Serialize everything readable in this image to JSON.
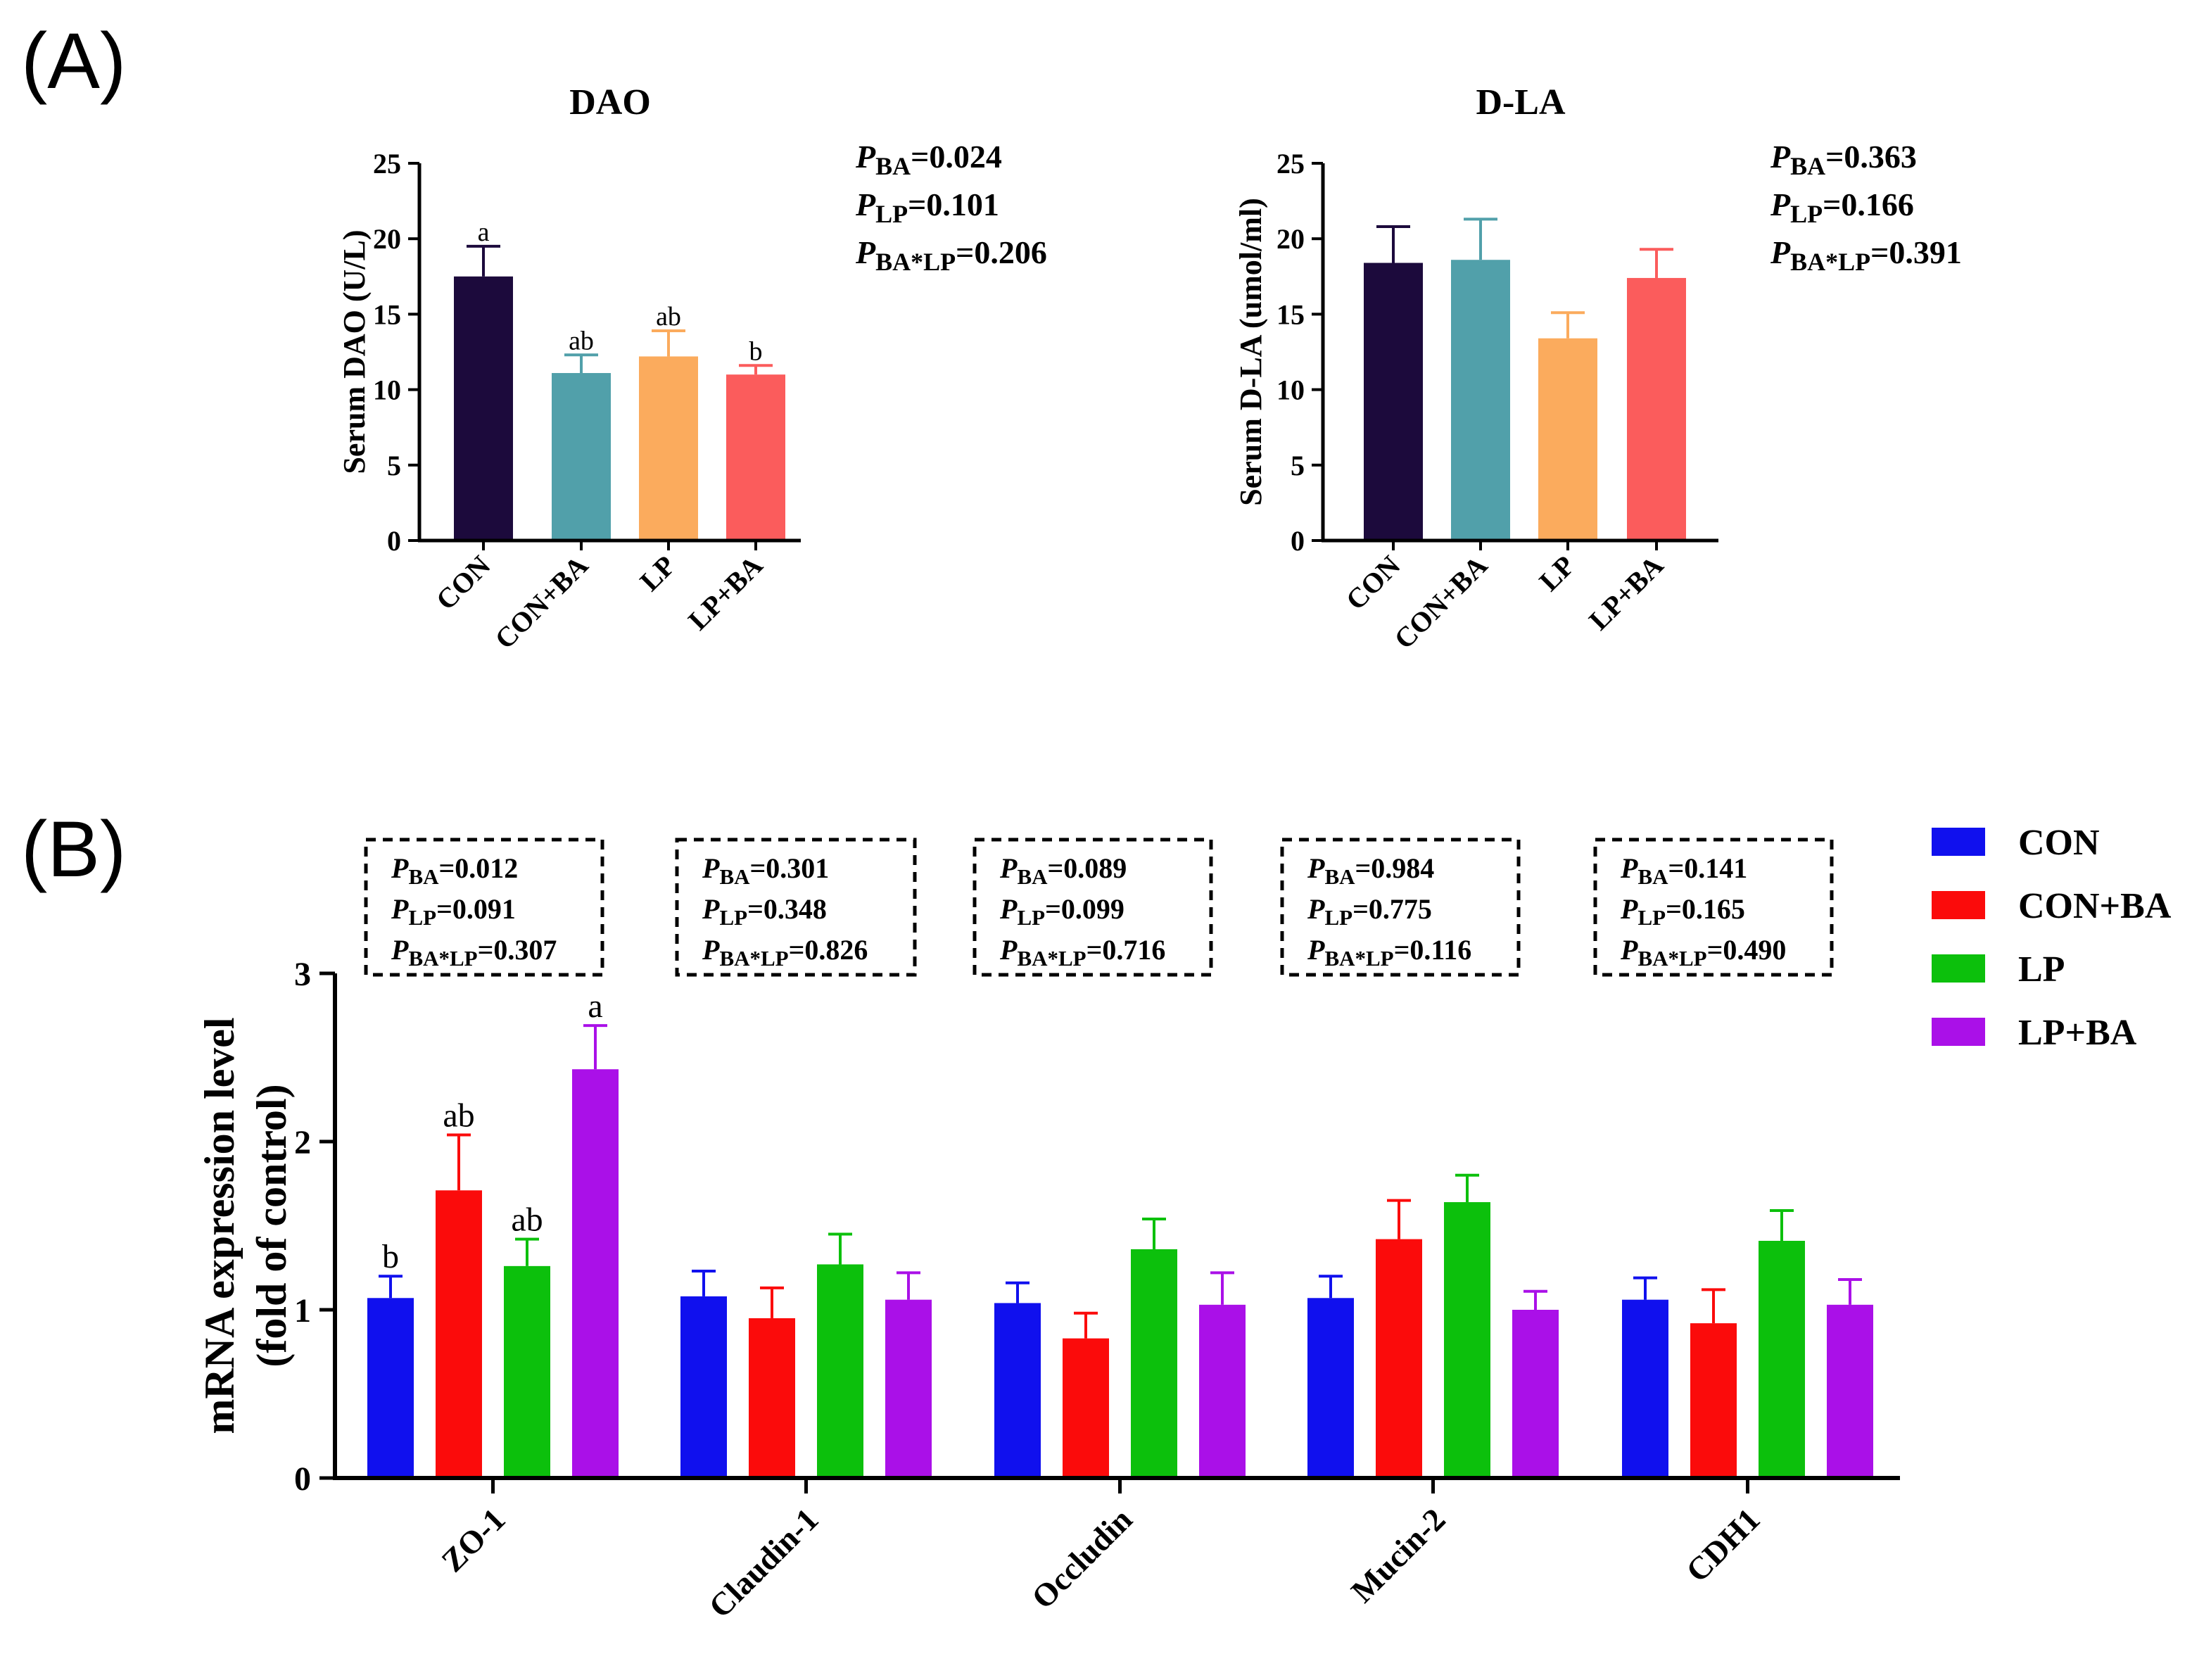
{
  "panel_labels": [
    "(A)",
    "(B)"
  ],
  "colors": {
    "panel_a": [
      "#1c0a3c",
      "#51a0aa",
      "#fbab5d",
      "#fb5c5c"
    ],
    "panel_b": [
      "#1010ee",
      "#fb0b0b",
      "#0cc00c",
      "#aa10e8"
    ]
  },
  "chart_data": [
    {
      "type": "bar",
      "title": "DAO",
      "xlabel": "",
      "ylabel": "Serum DAO (U/L)",
      "ylim": [
        0,
        25
      ],
      "yticks": [
        0,
        5,
        10,
        15,
        20,
        25
      ],
      "categories": [
        "CON",
        "CON+BA",
        "LP",
        "LP+BA"
      ],
      "values": [
        17.5,
        11.1,
        12.2,
        11.0
      ],
      "errors": [
        2.0,
        1.2,
        1.7,
        0.6
      ],
      "sig_letters": [
        "a",
        "ab",
        "ab",
        "b"
      ],
      "pvalues": [
        {
          "sub": "BA",
          "value": "=0.024"
        },
        {
          "sub": "LP",
          "value": "=0.101"
        },
        {
          "sub": "BA*LP",
          "value": "=0.206"
        }
      ]
    },
    {
      "type": "bar",
      "title": "D-LA",
      "xlabel": "",
      "ylabel": "Serum D-LA (umol/ml)",
      "ylim": [
        0,
        25
      ],
      "yticks": [
        0,
        5,
        10,
        15,
        20,
        25
      ],
      "categories": [
        "CON",
        "CON+BA",
        "LP",
        "LP+BA"
      ],
      "values": [
        18.4,
        18.6,
        13.4,
        17.4
      ],
      "errors": [
        2.4,
        2.7,
        1.7,
        1.9
      ],
      "pvalues": [
        {
          "sub": "BA",
          "value": "=0.363"
        },
        {
          "sub": "LP",
          "value": "=0.166"
        },
        {
          "sub": "BA*LP",
          "value": "=0.391"
        }
      ]
    },
    {
      "type": "bar",
      "title": "",
      "xlabel": "",
      "ylabel": [
        "mRNA expression level",
        "(fold of control)"
      ],
      "ylim": [
        0,
        3
      ],
      "yticks": [
        0,
        1,
        2,
        3
      ],
      "categories": [
        "ZO-1",
        "Claudin-1",
        "Occludin",
        "Mucin-2",
        "CDH1"
      ],
      "legend": {
        "placement": "right",
        "entries": [
          "CON",
          "CON+BA",
          "LP",
          "LP+BA"
        ]
      },
      "series": [
        {
          "name": "CON",
          "values": [
            1.07,
            1.08,
            1.04,
            1.07,
            1.06
          ],
          "errors": [
            0.13,
            0.15,
            0.12,
            0.13,
            0.13
          ]
        },
        {
          "name": "CON+BA",
          "values": [
            1.71,
            0.95,
            0.83,
            1.42,
            0.92
          ],
          "errors": [
            0.33,
            0.18,
            0.15,
            0.23,
            0.2
          ]
        },
        {
          "name": "LP",
          "values": [
            1.26,
            1.27,
            1.36,
            1.64,
            1.41
          ],
          "errors": [
            0.16,
            0.18,
            0.18,
            0.16,
            0.18
          ]
        },
        {
          "name": "LP+BA",
          "values": [
            2.43,
            1.06,
            1.03,
            1.0,
            1.03
          ],
          "errors": [
            0.26,
            0.16,
            0.19,
            0.11,
            0.15
          ]
        }
      ],
      "sig_letters": [
        [
          "b",
          "ab",
          "ab",
          "a"
        ],
        [],
        [],
        [],
        []
      ],
      "pvalues": [
        [
          {
            "sub": "BA",
            "value": "=0.012"
          },
          {
            "sub": "LP",
            "value": "=0.091"
          },
          {
            "sub": "BA*LP",
            "value": "=0.307"
          }
        ],
        [
          {
            "sub": "BA",
            "value": "=0.301"
          },
          {
            "sub": "LP",
            "value": "=0.348"
          },
          {
            "sub": "BA*LP",
            "value": "=0.826"
          }
        ],
        [
          {
            "sub": "BA",
            "value": "=0.089"
          },
          {
            "sub": "LP",
            "value": "=0.099"
          },
          {
            "sub": "BA*LP",
            "value": "=0.716"
          }
        ],
        [
          {
            "sub": "BA",
            "value": "=0.984"
          },
          {
            "sub": "LP",
            "value": "=0.775"
          },
          {
            "sub": "BA*LP",
            "value": "=0.116"
          }
        ],
        [
          {
            "sub": "BA",
            "value": "=0.141"
          },
          {
            "sub": "LP",
            "value": "=0.165"
          },
          {
            "sub": "BA*LP",
            "value": "=0.490"
          }
        ]
      ]
    }
  ]
}
